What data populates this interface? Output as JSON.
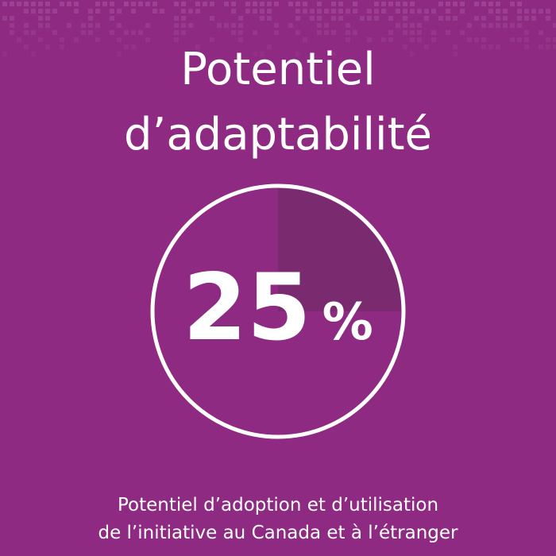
{
  "title": {
    "line1": "Potentiel",
    "line2": "d’adaptabilité"
  },
  "indicator": {
    "value": 25,
    "value_text": "25",
    "unit": "%"
  },
  "caption": {
    "line1": "Potentiel d’adoption et d’utilisation",
    "line2": "de l’initiative au Canada et à l’étranger"
  },
  "colors": {
    "background": "#8e2a82",
    "fill": "#7a2b70",
    "ring": "#ffffff",
    "pattern": "#a24a97"
  }
}
